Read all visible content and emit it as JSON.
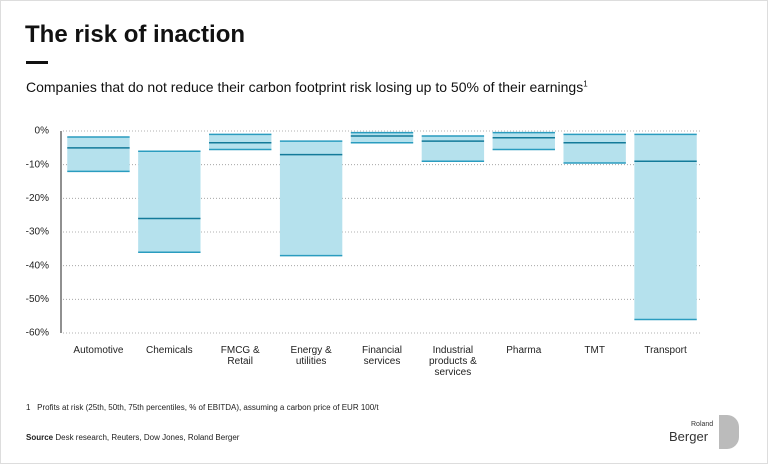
{
  "chart_data": {
    "type": "range",
    "title": "The risk of inaction",
    "subtitle": "Companies that do not reduce their carbon footprint risk losing up to 50% of their earnings",
    "subtitle_note": "1",
    "categories": [
      "Automotive",
      "Chemicals",
      "FMCG &\nRetail",
      "Energy &\nutilities",
      "Financial\nservices",
      "Industrial\nproducts &\nservices",
      "Pharma",
      "TMT",
      "Transport"
    ],
    "series": [
      {
        "values": [
          -1.8,
          -6,
          -1,
          -3,
          -0.5,
          -1.5,
          -0.5,
          -1,
          -1
        ],
        "color": "#2a9cbf"
      },
      {
        "values": [
          -5,
          -26,
          -3.5,
          -7,
          -1.5,
          -3,
          -2,
          -3.5,
          -9
        ],
        "color": "#137a99"
      },
      {
        "values": [
          -12,
          -36,
          -5.5,
          -37,
          -3.5,
          -9,
          -5.5,
          -9.5,
          -56
        ],
        "color": "#2a9cbf"
      }
    ],
    "fill": "#b5e1ed",
    "ylim": [
      0,
      -60
    ],
    "yticks": [
      {
        "value": 0,
        "label": "0%"
      },
      {
        "value": -10,
        "label": "-10%"
      },
      {
        "value": -20,
        "label": "-20%"
      },
      {
        "value": -30,
        "label": "-30%"
      },
      {
        "value": -40,
        "label": "-40%"
      },
      {
        "value": -50,
        "label": "-50%"
      },
      {
        "value": -60,
        "label": "-60%"
      }
    ],
    "grid": true,
    "footnote_marker": "1",
    "footnote": "Profits at risk (25th, 50th, 75th percentiles, % of EBITDA), assuming a carbon price of EUR 100/t",
    "source_label": "Source",
    "source": "Desk research, Reuters, Dow Jones, Roland Berger"
  },
  "logo": {
    "top": "Roland",
    "bottom": "Berger"
  }
}
